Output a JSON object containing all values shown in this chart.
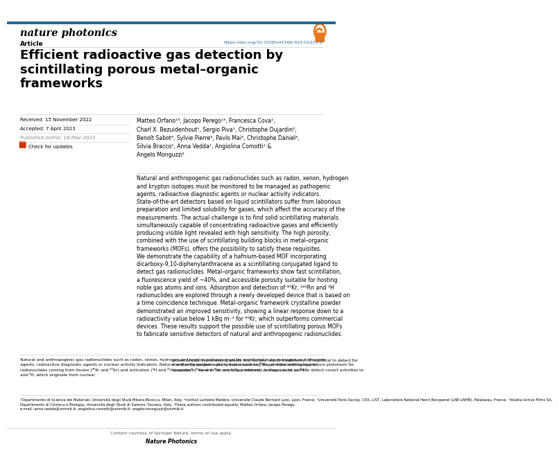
{
  "journal_name": "nature photonics",
  "open_access_color": "#E87722",
  "top_bar_color": "#1a6496",
  "article_label": "Article",
  "doi": "https://doi.org/10.1038/s41566-023-01211-2",
  "doi_color": "#1a6496",
  "title": "Efficient radioactive gas detection by\nscintillating porous metal–organic\nframeworks",
  "received": "Received: 15 November 2022",
  "accepted": "Accepted: 7 April 2023",
  "published": "Published online: 18 May 2023",
  "check_updates": "Check for updates",
  "authors": "Matteo Orfano¹³, Jacopo Perego¹³, Francesca Cova¹,\nCharl X. Bezuidenhout¹, Sergio Piva¹, Christophe Dujardin²,\nBenoît Sabot³, Sylvie Pierre³, Pavlo Mai², Christophe Daniel⁴,\nSilvia Bracco¹, Anna Vedda¹, Angiolina Comotti¹ &\nAngelo Monguzzi¹",
  "abstract": "Natural and anthropogenic gas radionuclides such as radon, xenon, hydrogen\nand krypton isotopes must be monitored to be managed as pathogenic\nagents, radioactive diagnostic agents or nuclear activity indicators.\nState-of-the-art detectors based on liquid scintillators suffer from laborious\npreparation and limited solubility for gases, which affect the accuracy of the\nmeasurements. The actual challenge is to find solid scintillating materials\nsimultaneously capable of concentrating radioactive gases and efficiently\nproducing visible light revealed with high sensitivity. The high porosity,\ncombined with the use of scintillating building blocks in metal–organic\nframeworks (MOFs), offers the possibility to satisfy these requisites.\nWe demonstrate the capability of a hafnium-based MOF incorporating\ndicarboxy-9,10-diphenylanthracene as a scintillating conjugated ligand to\ndetect gas radionuclides. Metal–organic frameworks show fast scintillation,\na fluorescence yield of ~40%, and accessible porosity suitable for hosting\nnoble gas atoms and ions. Adsorption and detection of ⁸⁵Kr, ²²²Rn and ³H\nradionuclides are explored through a newly developed device that is based on\na time coincidence technique. Metal–organic framework crystalline powder\ndemonstrated an improved sensitivity, showing a linear response down to a\nradioactivity value below 1 kBq m⁻³ for ⁸⁵Kr, which outperforms commercial\ndevices. These results support the possible use of scintillating porous MOFs\nto fabricate sensitive detectors of natural and anthropogenic radionuclides.",
  "footnote_text": "Natural and anthropogenic gas radionuclides such as radon, xenon, hydrogen and krypton isotopes must be monitored to be managed as pathogenic\nagents, radioactive diagnostic agents or nuclear activity indicators. Natural and anthropogenic gas isotopes such as ⁸⁵Rn, and the anthropogenic\nradionuclides coming from fission (⁸⁵Kr and ⁸⁷Kr) and activation (³H and ⁴¹Ar) products, need to be carefully monitored. Isotopes such as ⁸⁵Kr\nand ³H, which originate from nuclear",
  "footnote_col2": "power plants, reprocessing plants and nuclear waste treatments¹, it is critical to detect for\nmonitoring nuclear activity and uncovering illegal reprocessing to produce plutonium for\nweapons². ⁸⁵Xe and ⁴¹Ar are of key interest, as they can be used to detect covert activities to",
  "affiliations": "¹Dipartimento di Scienza dei Materiali, Università degli Studi Milano-Bicocca, Milan, Italy. ²Institut Lumière Matière, Université Claude Bernard Lyon, Lyon, France. ³Université Paris-Saclay, CEA, LIST, Laboratoire National Henri Becquerel (LNE-LNHB), Palaiseau, France. ⁴Alsatia Active Films SA,\nDipartimento di Chimica e Biologia, Università degli Studi di Salerno, Faciano, Italy. ⁵These authors contributed equally: Matteo Orfano, Jacopo Perego.\ne-mail: anna.vedda@unimib.it; angiolina.comotti@unimib.it; angelo.monguzzi@unimib.it",
  "content_notice": "Content courtesy of Springer Nature, terms of use apply.",
  "nature_photonics_bottom": "Nature Photonics",
  "bg_color": "#ffffff",
  "text_color": "#000000",
  "gray_text": "#555555",
  "light_gray": "#aaaaaa",
  "line_color": "#cccccc",
  "title_fontsize": 13.0,
  "journal_fontsize": 10.5,
  "body_fontsize": 5.6,
  "small_fontsize": 4.5,
  "author_fontsize": 5.6,
  "footnote_fontsize": 4.2
}
